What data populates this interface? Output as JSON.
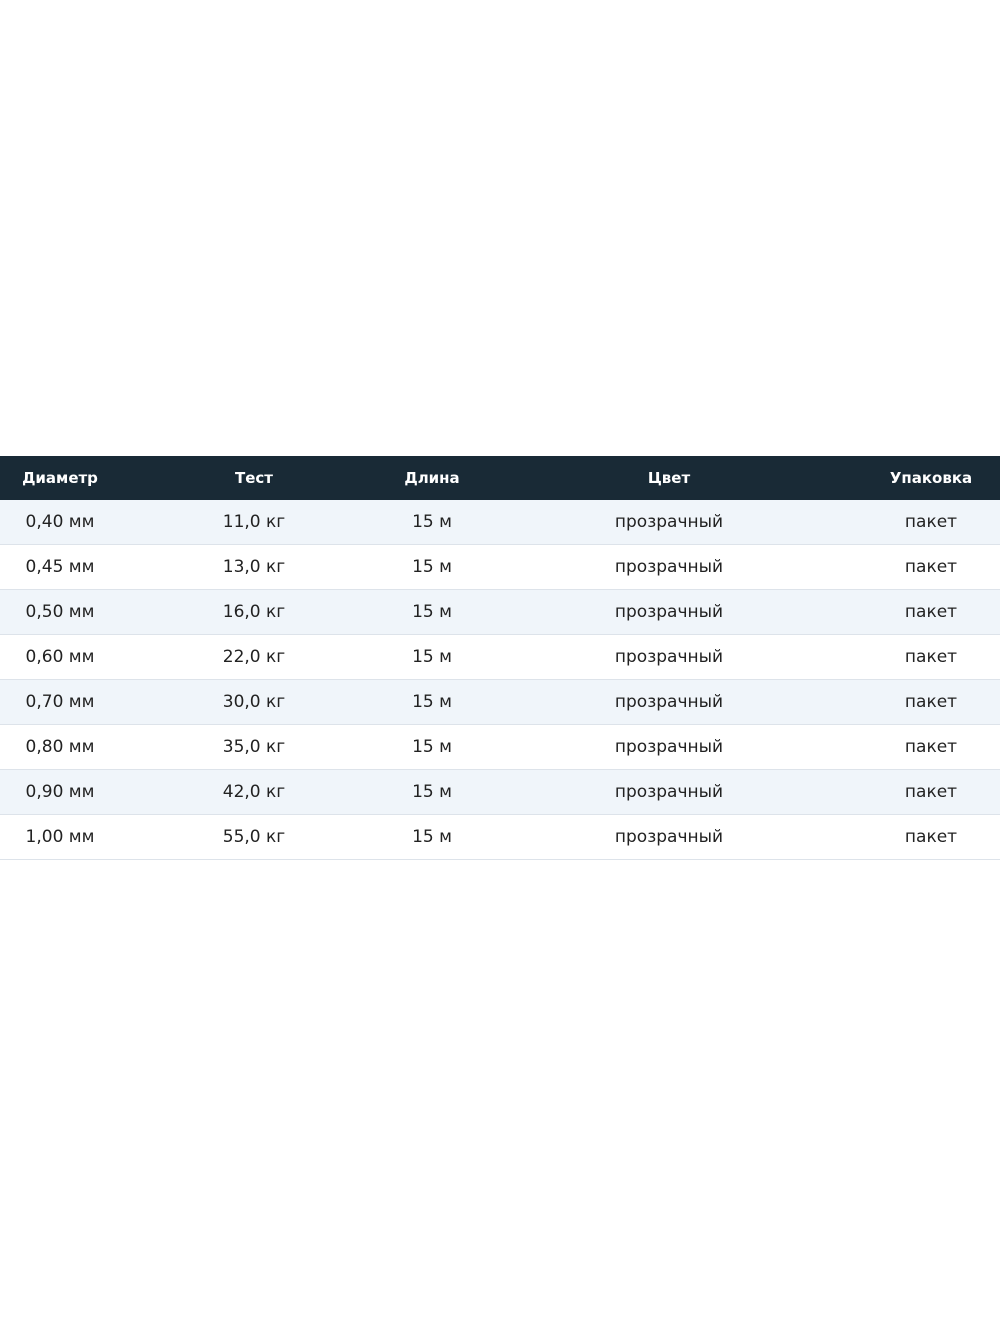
{
  "table": {
    "headers": [
      "Диаметр",
      "Тест",
      "Длина",
      "Цвет",
      "Упаковка"
    ],
    "rows": [
      [
        "0,40 мм",
        "11,0 кг",
        "15 м",
        "прозрачный",
        "пакет"
      ],
      [
        "0,45 мм",
        "13,0 кг",
        "15 м",
        "прозрачный",
        "пакет"
      ],
      [
        "0,50 мм",
        "16,0 кг",
        "15 м",
        "прозрачный",
        "пакет"
      ],
      [
        "0,60 мм",
        "22,0 кг",
        "15 м",
        "прозрачный",
        "пакет"
      ],
      [
        "0,70 мм",
        "30,0 кг",
        "15 м",
        "прозрачный",
        "пакет"
      ],
      [
        "0,80 мм",
        "35,0 кг",
        "15 м",
        "прозрачный",
        "пакет"
      ],
      [
        "0,90 мм",
        "42,0 кг",
        "15 м",
        "прозрачный",
        "пакет"
      ],
      [
        "1,00 мм",
        "55,0 кг",
        "15 м",
        "прозрачный",
        "пакет"
      ]
    ]
  },
  "colors": {
    "header_bg": "#192a36",
    "stripe_bg": "#f0f5fa"
  }
}
